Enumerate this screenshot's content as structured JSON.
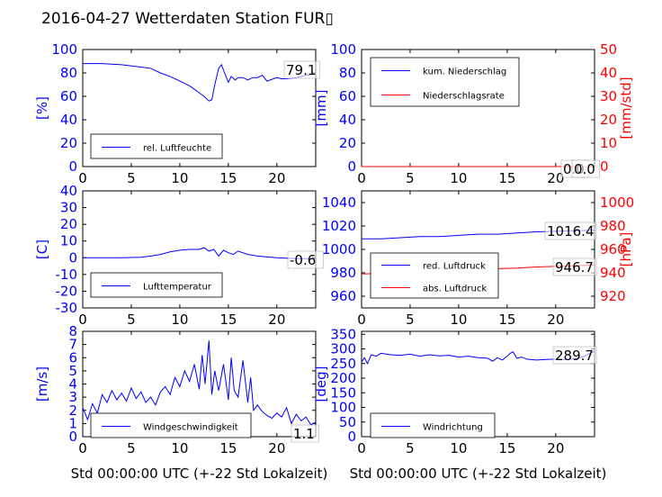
{
  "title": "2016-04-27 Wetterdaten Station FUR▯",
  "colors": {
    "primary": "#0000ff",
    "secondary": "#ff0000",
    "axis": "#000000"
  },
  "xlabel": "Std 00:00:00 UTC (+-22 Std Lokalzeit)",
  "chart_data": [
    {
      "id": "humidity",
      "type": "line",
      "position": "top-left",
      "ylabel": "[%]",
      "ylim": [
        0,
        100
      ],
      "yticks": [
        0,
        20,
        40,
        60,
        80,
        100
      ],
      "xlim": [
        0,
        24
      ],
      "xticks": [
        0,
        5,
        10,
        15,
        20
      ],
      "current_value": "79.1",
      "legend_placement": "lower-left",
      "series": [
        {
          "name": "rel. Luftfeuchte",
          "color": "#0000ff",
          "x": [
            0,
            2,
            4,
            6,
            7,
            8,
            9,
            10,
            11,
            11.5,
            12,
            12.5,
            13,
            13.3,
            13.6,
            14,
            14.3,
            14.6,
            15,
            15.3,
            15.7,
            16,
            16.5,
            17,
            17.5,
            18,
            18.5,
            19,
            20,
            20.5,
            21,
            22,
            23,
            24
          ],
          "y": [
            88,
            88,
            87,
            85,
            84,
            80,
            77,
            73,
            69,
            66,
            63,
            60,
            56,
            57,
            70,
            84,
            87,
            80,
            72,
            77,
            74,
            76,
            76,
            74,
            76,
            76,
            78,
            73,
            76,
            75,
            75,
            76,
            78,
            79
          ]
        }
      ]
    },
    {
      "id": "precip",
      "type": "line",
      "position": "top-right",
      "ylabel": "[mm]",
      "ylim": [
        0,
        100
      ],
      "yticks": [
        0,
        20,
        40,
        60,
        80,
        100
      ],
      "y2label": "[mm/std]",
      "y2lim": [
        0,
        50
      ],
      "y2ticks": [
        0,
        10,
        20,
        30,
        40,
        50
      ],
      "xlim": [
        0,
        24
      ],
      "xticks": [
        0,
        5,
        10,
        15,
        20
      ],
      "current_values": [
        "0.0",
        "0.0"
      ],
      "legend_placement": "upper-left",
      "series": [
        {
          "name": "kum. Niederschlag",
          "color": "#0000ff",
          "x": [
            0,
            24
          ],
          "y": [
            0,
            0
          ]
        },
        {
          "name": "Niederschlagsrate",
          "color": "#ff0000",
          "axis": "right",
          "x": [
            0,
            24
          ],
          "y": [
            0,
            0
          ]
        }
      ]
    },
    {
      "id": "temperature",
      "type": "line",
      "position": "middle-left",
      "ylabel": "[C]",
      "ylim": [
        -30,
        40
      ],
      "yticks": [
        -30,
        -20,
        -10,
        0,
        10,
        20,
        30,
        40
      ],
      "xlim": [
        0,
        24
      ],
      "xticks": [
        0,
        5,
        10,
        15,
        20
      ],
      "current_value": "-0.6",
      "legend_placement": "lower-left",
      "series": [
        {
          "name": "Lufttemperatur",
          "color": "#0000ff",
          "x": [
            0,
            2,
            4,
            6,
            7,
            8,
            9,
            10,
            11,
            12,
            12.5,
            13,
            13.5,
            14,
            14.5,
            15,
            15.5,
            16,
            17,
            18,
            19,
            20,
            21,
            22,
            23,
            24
          ],
          "y": [
            0,
            0,
            0,
            0.3,
            1,
            2,
            3.5,
            4.5,
            5,
            5,
            6,
            4,
            5,
            1,
            4.5,
            3,
            2,
            4,
            2,
            1,
            0.5,
            0,
            -0.3,
            -0.5,
            -0.5,
            -0.6
          ]
        }
      ]
    },
    {
      "id": "pressure",
      "type": "line",
      "position": "middle-right",
      "ylabel": "",
      "ylim": [
        950,
        1050
      ],
      "yticks": [
        960,
        980,
        1000,
        1020,
        1040
      ],
      "y2label": "[hPa]",
      "y2lim": [
        910,
        1010
      ],
      "y2ticks": [
        920,
        940,
        960,
        980,
        1000
      ],
      "xlim": [
        0,
        24
      ],
      "xticks": [
        0,
        5,
        10,
        15,
        20
      ],
      "current_values": [
        "1016.4",
        "946.7"
      ],
      "legend_placement": "lower-left",
      "series": [
        {
          "name": "red. Luftdruck",
          "color": "#0000ff",
          "x": [
            0,
            2,
            4,
            6,
            8,
            10,
            12,
            14,
            16,
            18,
            20,
            22,
            24
          ],
          "y": [
            1009,
            1009,
            1010,
            1011,
            1011,
            1012,
            1013,
            1013,
            1014,
            1015,
            1015.5,
            1016,
            1016.4
          ]
        },
        {
          "name": "abs. Luftdruck",
          "color": "#ff0000",
          "axis": "right",
          "x": [
            0,
            2,
            4,
            6,
            8,
            10,
            12,
            14,
            16,
            18,
            20,
            22,
            24
          ],
          "y": [
            939,
            939.5,
            940,
            941,
            941.5,
            942,
            943,
            943.5,
            944,
            945,
            945.5,
            946,
            946.7
          ]
        }
      ]
    },
    {
      "id": "wind",
      "type": "line",
      "position": "bottom-left",
      "ylabel": "[m/s]",
      "ylim": [
        0,
        8
      ],
      "yticks": [
        0,
        1,
        2,
        3,
        4,
        5,
        6,
        7,
        8
      ],
      "xlim": [
        0,
        24
      ],
      "xticks": [
        0,
        5,
        10,
        15,
        20
      ],
      "current_value": "1.1",
      "legend_placement": "lower-center",
      "series": [
        {
          "name": "Windgeschwindigkeit",
          "color": "#0000ff",
          "x": [
            0,
            0.5,
            1,
            1.5,
            2,
            2.5,
            3,
            3.5,
            4,
            4.5,
            5,
            5.5,
            6,
            6.5,
            7,
            7.5,
            8,
            8.5,
            9,
            9.5,
            10,
            10.5,
            11,
            11.5,
            12,
            12.3,
            12.6,
            13,
            13.3,
            13.6,
            14,
            14.5,
            15,
            15.3,
            15.6,
            16,
            16.5,
            17,
            17.3,
            17.6,
            18,
            18.5,
            19,
            19.5,
            20,
            20.5,
            21,
            21.5,
            22,
            22.5,
            23,
            23.5,
            24
          ],
          "y": [
            2.2,
            1.3,
            2.5,
            1.8,
            3.2,
            2.6,
            3.5,
            2.8,
            3.3,
            2.7,
            3.7,
            2.9,
            3.4,
            2.6,
            3.0,
            2.4,
            3.4,
            3.8,
            3.2,
            4.5,
            3.8,
            5.0,
            4.2,
            5.5,
            3.6,
            6.2,
            4.0,
            7.3,
            3.2,
            5.0,
            3.5,
            5.5,
            2.8,
            6.0,
            3.5,
            3.0,
            5.8,
            2.6,
            4.5,
            2.0,
            2.4,
            1.9,
            1.6,
            1.4,
            1.8,
            1.5,
            2.2,
            1.0,
            1.7,
            1.2,
            1.5,
            0.9,
            1.1
          ]
        }
      ]
    },
    {
      "id": "winddir",
      "type": "line",
      "position": "bottom-right",
      "ylabel": "[deg]",
      "ylim": [
        0,
        360
      ],
      "yticks": [
        0,
        50,
        100,
        150,
        200,
        250,
        300,
        350
      ],
      "xlim": [
        0,
        24
      ],
      "xticks": [
        0,
        5,
        10,
        15,
        20
      ],
      "current_value": "289.7",
      "legend_placement": "lower-left",
      "series": [
        {
          "name": "Windrichtung",
          "color": "#0000ff",
          "x": [
            0,
            0.3,
            0.6,
            1,
            1.5,
            2,
            3,
            4,
            5,
            6,
            7,
            8,
            9,
            10,
            11,
            12,
            13,
            13.5,
            14,
            14.5,
            15,
            15.3,
            15.6,
            16,
            16.5,
            17,
            18,
            19,
            20,
            21,
            22,
            23,
            23.5,
            24
          ],
          "y": [
            255,
            270,
            250,
            280,
            275,
            285,
            280,
            278,
            282,
            275,
            280,
            276,
            278,
            272,
            275,
            270,
            268,
            258,
            270,
            262,
            275,
            285,
            290,
            268,
            272,
            265,
            262,
            264,
            265,
            263,
            266,
            275,
            285,
            290
          ]
        }
      ]
    }
  ]
}
